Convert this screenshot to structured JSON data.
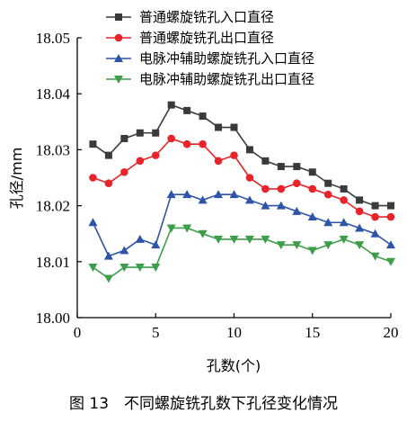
{
  "caption": "图 13　不同螺旋铣孔数下孔径变化情况",
  "chart_data": {
    "type": "line",
    "xlabel": "孔数(个)",
    "ylabel": "孔径/mm",
    "xlim": [
      0,
      20
    ],
    "ylim": [
      18.0,
      18.05
    ],
    "xticks": [
      "0",
      "5",
      "10",
      "15",
      "20"
    ],
    "yticks": [
      "18.00",
      "18.01",
      "18.02",
      "18.03",
      "18.04",
      "18.05"
    ],
    "grid": false,
    "legend_position": "top-right",
    "x": [
      1,
      2,
      3,
      4,
      5,
      6,
      7,
      8,
      9,
      10,
      11,
      12,
      13,
      14,
      15,
      16,
      17,
      18,
      19,
      20
    ],
    "series": [
      {
        "name": "普通螺旋铣孔入口直径",
        "color": "#3a3a3a",
        "marker": "square",
        "values": [
          18.031,
          18.029,
          18.032,
          18.033,
          18.033,
          18.038,
          18.037,
          18.036,
          18.034,
          18.034,
          18.03,
          18.028,
          18.027,
          18.027,
          18.026,
          18.024,
          18.023,
          18.021,
          18.02,
          18.02
        ]
      },
      {
        "name": "普通螺旋铣孔出口直径",
        "color": "#e8242a",
        "marker": "circle",
        "values": [
          18.025,
          18.024,
          18.026,
          18.028,
          18.029,
          18.032,
          18.031,
          18.031,
          18.028,
          18.029,
          18.025,
          18.023,
          18.023,
          18.024,
          18.023,
          18.022,
          18.021,
          18.019,
          18.018,
          18.018
        ]
      },
      {
        "name": "电脉冲辅助螺旋铣孔入口直径",
        "color": "#2e54a8",
        "marker": "triangle-up",
        "values": [
          18.017,
          18.011,
          18.012,
          18.014,
          18.013,
          18.022,
          18.022,
          18.021,
          18.022,
          18.022,
          18.021,
          18.02,
          18.02,
          18.019,
          18.018,
          18.017,
          18.017,
          18.016,
          18.015,
          18.013
        ]
      },
      {
        "name": "电脉冲辅助螺旋铣孔出口直径",
        "color": "#3d9e4a",
        "marker": "triangle-down",
        "values": [
          18.009,
          18.007,
          18.009,
          18.009,
          18.009,
          18.016,
          18.016,
          18.015,
          18.014,
          18.014,
          18.014,
          18.014,
          18.013,
          18.013,
          18.012,
          18.013,
          18.014,
          18.013,
          18.011,
          18.01
        ]
      }
    ]
  }
}
